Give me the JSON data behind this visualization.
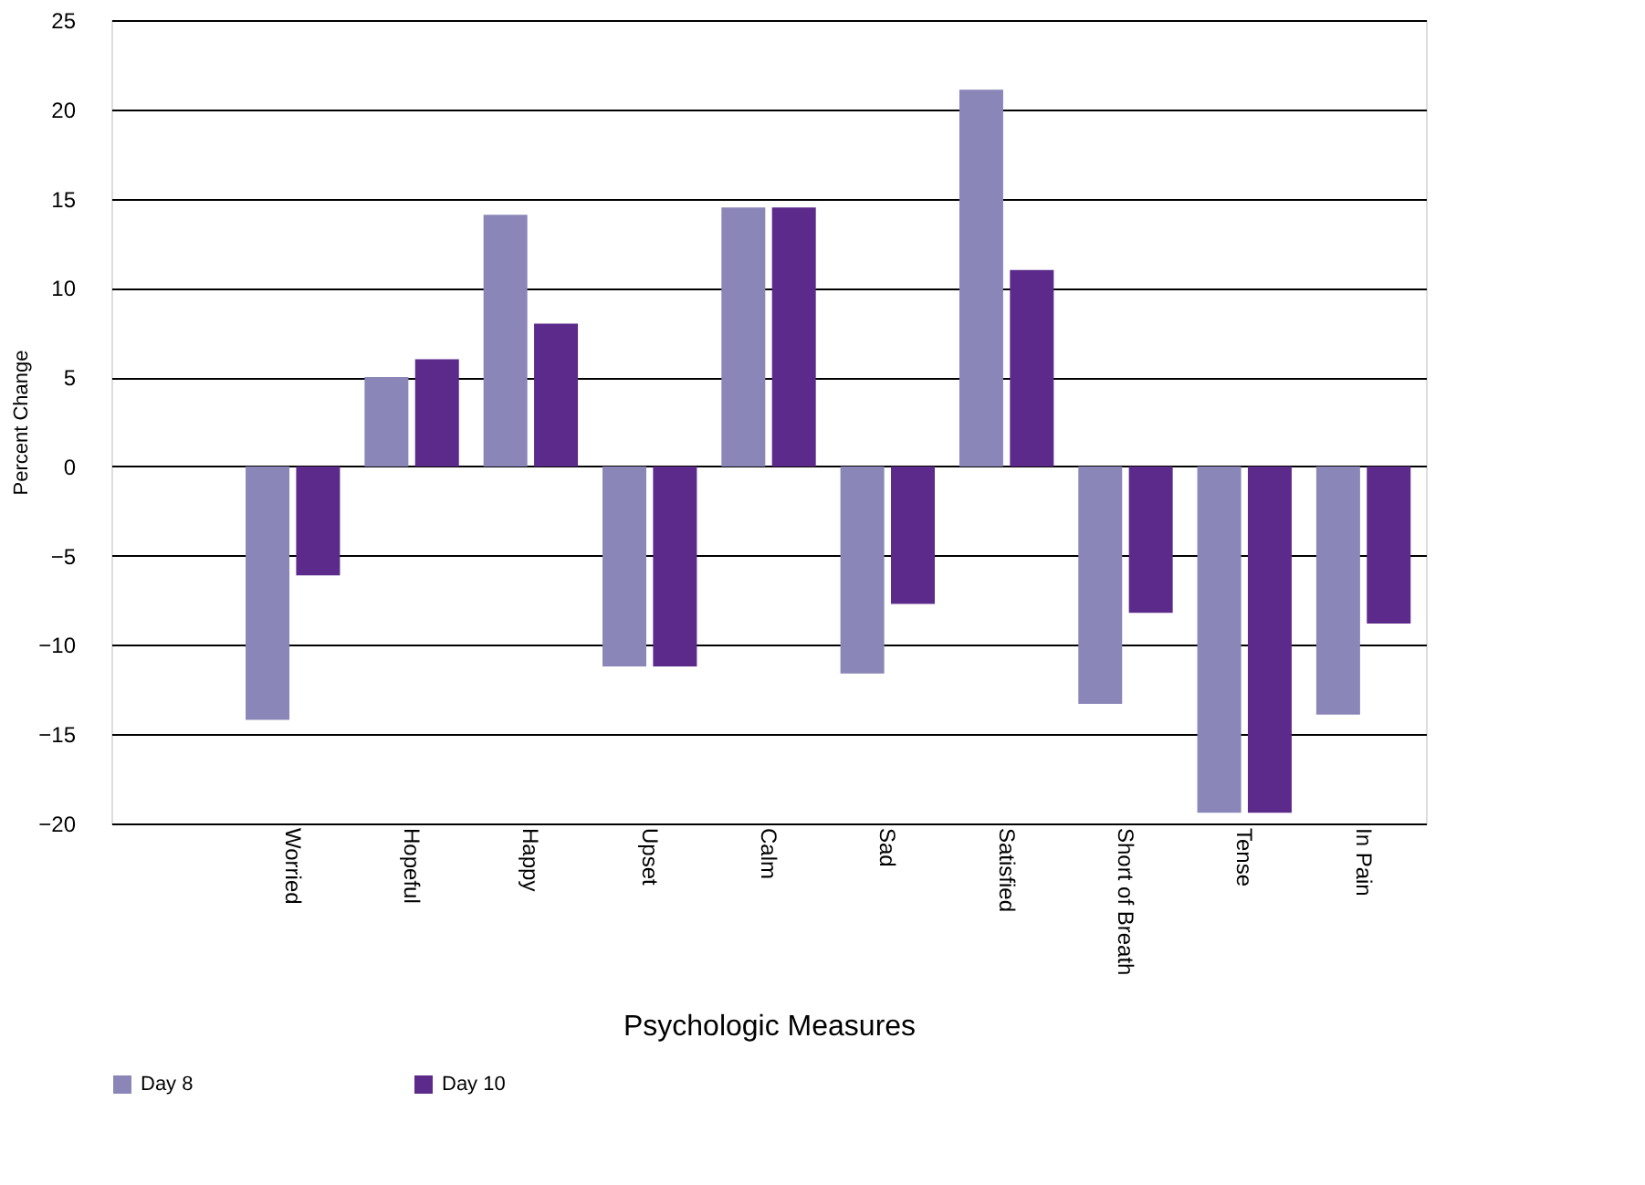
{
  "chart_data": {
    "type": "bar",
    "xlabel": "Psychologic Measures",
    "ylabel": "Percent Change",
    "categories": [
      null,
      "Worried",
      "Hopeful",
      "Happy",
      "Upset",
      "Calm",
      "Sad",
      "Satisfied",
      "Short of Breath",
      "Tense",
      "In Pain"
    ],
    "series": [
      {
        "name": "Day 8",
        "color": "#8a86b8",
        "values": [
          null,
          -14.2,
          5.0,
          14.1,
          -11.2,
          14.5,
          -11.6,
          21.1,
          -13.3,
          -19.4,
          -13.9
        ]
      },
      {
        "name": "Day 10",
        "color": "#5c2a8a",
        "values": [
          null,
          -6.1,
          6.0,
          8.0,
          -11.2,
          14.5,
          -7.7,
          11.0,
          -8.2,
          -19.4,
          -8.8
        ]
      }
    ],
    "ylim": [
      -20,
      25
    ],
    "yticks": [
      -20,
      -15,
      -10,
      -5,
      0,
      5,
      10,
      15,
      20,
      25
    ],
    "grid": "y",
    "legend": "bottom"
  }
}
